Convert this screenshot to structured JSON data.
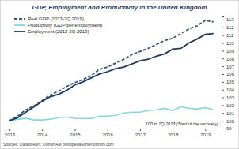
{
  "chart_data": {
    "type": "line",
    "title": "GDP, Employment and Productivity in the United Kingdom",
    "annotations": [
      "100 in 1Q 2013 (Start of the recovery)",
      "Sources: Datastream; OstrumAM philippewaechter.ostrum.com"
    ],
    "x": [
      2013,
      2013.25,
      2013.5,
      2013.75,
      2014,
      2014.25,
      2014.5,
      2014.75,
      2015,
      2015.25,
      2015.5,
      2015.75,
      2016,
      2016.25,
      2016.5,
      2016.75,
      2017,
      2017.25,
      2017.5,
      2017.75,
      2018,
      2018.25,
      2018.5,
      2018.75,
      2019,
      2019.25
    ],
    "series": [
      {
        "name": "Real GDP (2013-2Q 2019)",
        "color": "#3a5878",
        "line_style": "dashed",
        "values": [
          100,
          100.6,
          101.4,
          101.9,
          102.6,
          103.3,
          103.8,
          104.4,
          104.9,
          105.3,
          105.8,
          106.6,
          106.9,
          107.4,
          107.9,
          108.5,
          108.9,
          109.3,
          109.8,
          110.3,
          110.6,
          111.2,
          111.8,
          112.2,
          112.9,
          112.7
        ]
      },
      {
        "name": "Productivity (GDP per employment)",
        "color": "#8ad6de",
        "line_style": "solid",
        "values": [
          100,
          100.2,
          100.3,
          100.1,
          100.1,
          100.2,
          100.4,
          100.5,
          100.3,
          100.3,
          100.3,
          100.6,
          100.6,
          100.7,
          101.0,
          101.1,
          101.1,
          101.3,
          101.4,
          101.6,
          101.3,
          101.8,
          101.6,
          101.5,
          101.7,
          101.4
        ]
      },
      {
        "name": "Employment (2013-2Q 2019)",
        "color": "#1e3a5c",
        "line_style": "solid",
        "values": [
          100,
          100.4,
          101.1,
          101.8,
          102.5,
          103.1,
          103.4,
          103.9,
          104.6,
          105.0,
          105.5,
          106.0,
          106.3,
          106.7,
          106.9,
          107.3,
          107.7,
          107.9,
          108.3,
          108.6,
          109.2,
          109.3,
          110.0,
          110.5,
          111.1,
          111.2
        ]
      }
    ],
    "xlim": [
      2013,
      2019.5
    ],
    "xticks": [
      2013,
      2014,
      2015,
      2016,
      2017,
      2018,
      2019
    ],
    "ylim": [
      99,
      113.5
    ],
    "yticks": [
      99,
      100,
      101,
      102,
      103,
      104,
      105,
      106,
      107,
      108,
      109,
      110,
      111,
      112,
      113
    ],
    "grid": false,
    "legend": "top-left"
  }
}
